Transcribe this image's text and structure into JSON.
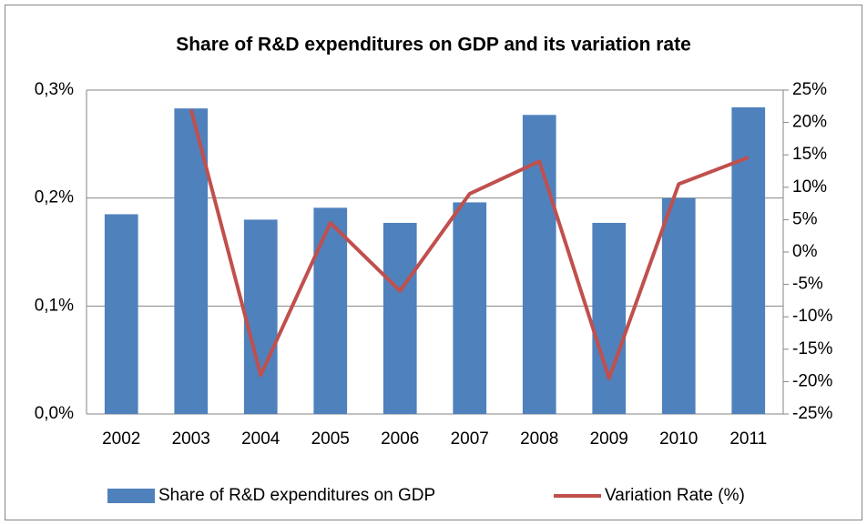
{
  "chart_data": {
    "type": "bar-line",
    "title": "Share of R&D expenditures on GDP and its variation rate",
    "categories": [
      "2002",
      "2003",
      "2004",
      "2005",
      "2006",
      "2007",
      "2008",
      "2009",
      "2010",
      "2011"
    ],
    "series": [
      {
        "name": "Share of R&D expenditures on GDP",
        "type": "bar",
        "color": "#4f81bd",
        "values": [
          0.185,
          0.283,
          0.18,
          0.191,
          0.177,
          0.196,
          0.277,
          0.177,
          0.2,
          0.284
        ]
      },
      {
        "name": "Variation Rate (%)",
        "type": "line",
        "axis": "y2",
        "color": "#c0504d",
        "values": [
          null,
          22,
          -19,
          4.5,
          -6,
          9,
          14,
          -19.5,
          10.5,
          14.6
        ]
      }
    ],
    "ylim": [
      0,
      0.3
    ],
    "yticks": [
      {
        "value": 0,
        "label": "0,0%"
      },
      {
        "value": 0.1,
        "label": "0,1%"
      },
      {
        "value": 0.2,
        "label": "0,2%"
      },
      {
        "value": 0.3,
        "label": "0,3%"
      }
    ],
    "y2lim": [
      -25,
      25
    ],
    "y2ticks": [
      {
        "value": -25,
        "label": "-25%"
      },
      {
        "value": -20,
        "label": "-20%"
      },
      {
        "value": -15,
        "label": "-15%"
      },
      {
        "value": -10,
        "label": "-10%"
      },
      {
        "value": -5,
        "label": "-5%"
      },
      {
        "value": 0,
        "label": "0%"
      },
      {
        "value": 5,
        "label": "5%"
      },
      {
        "value": 10,
        "label": "10%"
      },
      {
        "value": 15,
        "label": "15%"
      },
      {
        "value": 20,
        "label": "20%"
      },
      {
        "value": 25,
        "label": "25%"
      }
    ],
    "grid": true,
    "legend": "bottom"
  }
}
